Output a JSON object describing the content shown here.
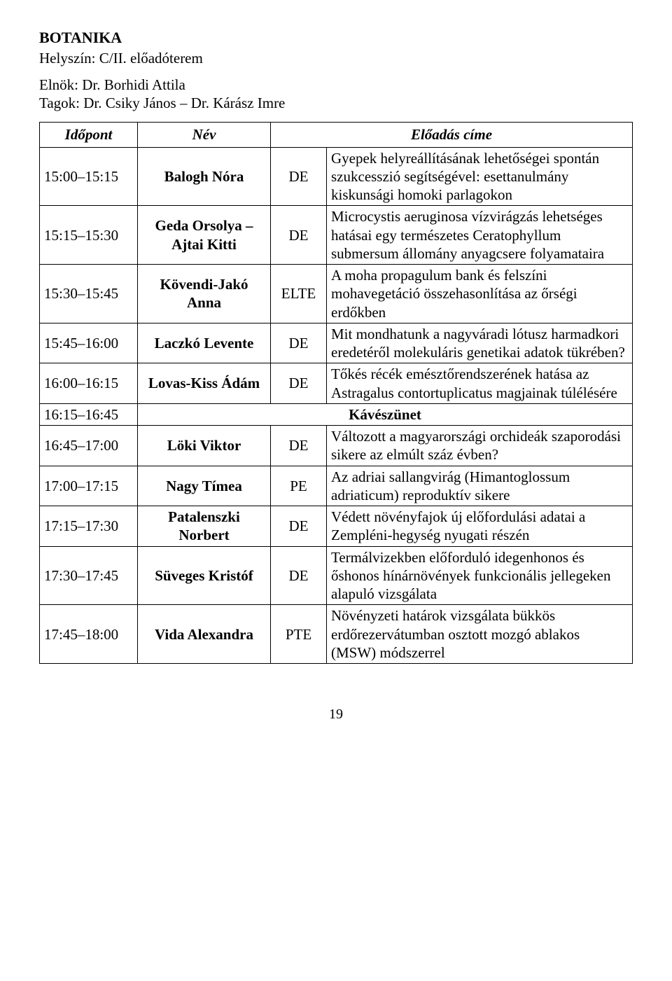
{
  "header": {
    "section_title": "BOTANIKA",
    "location": "Helyszín: C/II. előadóterem",
    "chair": "Elnök: Dr. Borhidi Attila",
    "members": "Tagok: Dr. Csiky János – Dr. Kárász Imre"
  },
  "table": {
    "columns": {
      "time": "Időpont",
      "name": "Név",
      "title": "Előadás címe"
    },
    "rows": [
      {
        "time": "15:00–15:15",
        "name": "Balogh Nóra",
        "inst": "DE",
        "title": "Gyepek helyreállításának lehetőségei spontán szukcesszió segítségével: esettanulmány kiskunsági homoki parlagokon"
      },
      {
        "time": "15:15–15:30",
        "name": "Geda Orsolya – Ajtai Kitti",
        "inst": "DE",
        "title": "Microcystis aeruginosa vízvirágzás lehetséges hatásai egy természetes Ceratophyllum submersum állomány anyagcsere folyamataira"
      },
      {
        "time": "15:30–15:45",
        "name": "Kövendi-Jakó Anna",
        "inst": "ELTE",
        "title": "A moha propagulum bank és felszíni mohavegetáció összehasonlítása az őrségi erdőkben"
      },
      {
        "time": "15:45–16:00",
        "name": "Laczkó Levente",
        "inst": "DE",
        "title": "Mit mondhatunk a nagyváradi lótusz harmadkori eredetéről molekuláris genetikai adatok tükrében?"
      },
      {
        "time": "16:00–16:15",
        "name": "Lovas-Kiss Ádám",
        "inst": "DE",
        "title": "Tőkés récék emésztőrendszerének hatása az Astragalus contortuplicatus magjainak túlélésére"
      },
      {
        "break": true,
        "time": "16:15–16:45",
        "label": "Kávészünet"
      },
      {
        "time": "16:45–17:00",
        "name": "Löki Viktor",
        "inst": "DE",
        "title": "Változott a magyarországi orchideák szaporodási sikere az elmúlt száz évben?"
      },
      {
        "time": "17:00–17:15",
        "name": "Nagy Tímea",
        "inst": "PE",
        "title": "Az adriai sallangvirág (Himantoglossum adriaticum) reproduktív sikere"
      },
      {
        "time": "17:15–17:30",
        "name": "Patalenszki Norbert",
        "inst": "DE",
        "title": "Védett növényfajok új előfordulási adatai a Zempléni-hegység nyugati részén"
      },
      {
        "time": "17:30–17:45",
        "name": "Süveges Kristóf",
        "inst": "DE",
        "title": "Termálvizekben előforduló idegenhonos és őshonos hínárnövények funkcionális jellegeken alapuló vizsgálata"
      },
      {
        "time": "17:45–18:00",
        "name": "Vida Alexandra",
        "inst": "PTE",
        "title": "Növényzeti határok vizsgálata bükkös erdőrezervátumban osztott mozgó ablakos (MSW) módszerrel"
      }
    ]
  },
  "page_number": "19"
}
